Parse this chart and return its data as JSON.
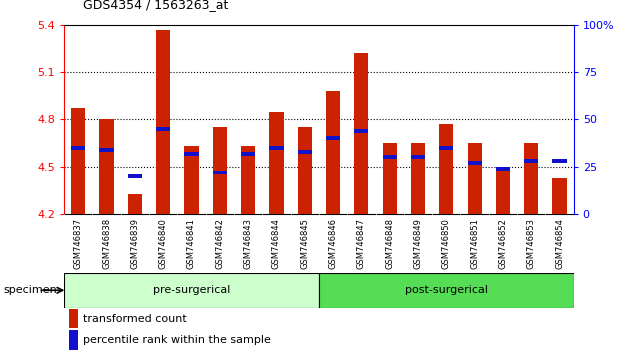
{
  "title": "GDS4354 / 1563263_at",
  "samples": [
    "GSM746837",
    "GSM746838",
    "GSM746839",
    "GSM746840",
    "GSM746841",
    "GSM746842",
    "GSM746843",
    "GSM746844",
    "GSM746845",
    "GSM746846",
    "GSM746847",
    "GSM746848",
    "GSM746849",
    "GSM746850",
    "GSM746851",
    "GSM746852",
    "GSM746853",
    "GSM746854"
  ],
  "transformed_count": [
    4.87,
    4.8,
    4.33,
    5.37,
    4.63,
    4.75,
    4.63,
    4.85,
    4.75,
    4.98,
    5.22,
    4.65,
    4.65,
    4.77,
    4.65,
    4.48,
    4.65,
    4.43
  ],
  "percentile_rank": [
    35,
    34,
    20,
    45,
    32,
    22,
    32,
    35,
    33,
    40,
    44,
    30,
    30,
    35,
    27,
    24,
    28,
    28
  ],
  "pre_surgical_count": 9,
  "post_surgical_count": 9,
  "ylim_left": [
    4.2,
    5.4
  ],
  "ylim_right": [
    0,
    100
  ],
  "yticks_left": [
    4.2,
    4.5,
    4.8,
    5.1,
    5.4
  ],
  "yticks_right": [
    0,
    25,
    50,
    75,
    100
  ],
  "ytick_labels_right": [
    "0",
    "25",
    "50",
    "75",
    "100%"
  ],
  "bar_color_red": "#CC2200",
  "bar_color_blue": "#1111CC",
  "pre_surgical_color": "#CCFFCC",
  "post_surgical_color": "#55DD55",
  "legend_red_label": "transformed count",
  "legend_blue_label": "percentile rank within the sample",
  "specimen_label": "specimen",
  "pre_surgical_label": "pre-surgerical",
  "post_surgical_label": "post-surgerical",
  "bar_width": 0.5
}
